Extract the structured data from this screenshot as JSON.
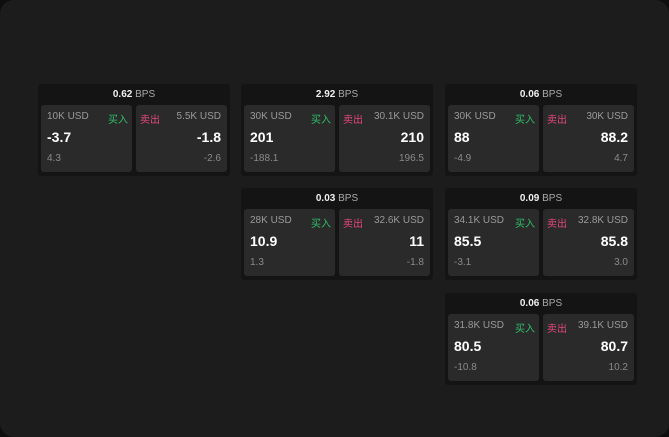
{
  "colors": {
    "buy": "#2fbf6a",
    "sell": "#e2477c"
  },
  "labels": {
    "buy": "买入",
    "sell": "卖出",
    "unit": "BPS"
  },
  "panels": [
    {
      "spread": "0.62",
      "buy": {
        "qty": "10K USD",
        "price": "-3.7",
        "change": "4.3"
      },
      "sell": {
        "qty": "5.5K USD",
        "price": "-1.8",
        "change": "-2.6"
      }
    },
    {
      "spread": "2.92",
      "buy": {
        "qty": "30K USD",
        "price": "201",
        "change": "-188.1"
      },
      "sell": {
        "qty": "30.1K USD",
        "price": "210",
        "change": "196.5"
      }
    },
    {
      "spread": "0.06",
      "buy": {
        "qty": "30K USD",
        "price": "88",
        "change": "-4.9"
      },
      "sell": {
        "qty": "30K USD",
        "price": "88.2",
        "change": "4.7"
      }
    },
    {
      "spread": "0.03",
      "buy": {
        "qty": "28K USD",
        "price": "10.9",
        "change": "1.3"
      },
      "sell": {
        "qty": "32.6K USD",
        "price": "11",
        "change": "-1.8"
      }
    },
    {
      "spread": "0.09",
      "buy": {
        "qty": "34.1K USD",
        "price": "85.5",
        "change": "-3.1"
      },
      "sell": {
        "qty": "32.8K USD",
        "price": "85.8",
        "change": "3.0"
      }
    },
    {
      "spread": "0.06",
      "buy": {
        "qty": "31.8K USD",
        "price": "80.5",
        "change": "-10.8"
      },
      "sell": {
        "qty": "39.1K USD",
        "price": "80.7",
        "change": "10.2"
      }
    }
  ]
}
